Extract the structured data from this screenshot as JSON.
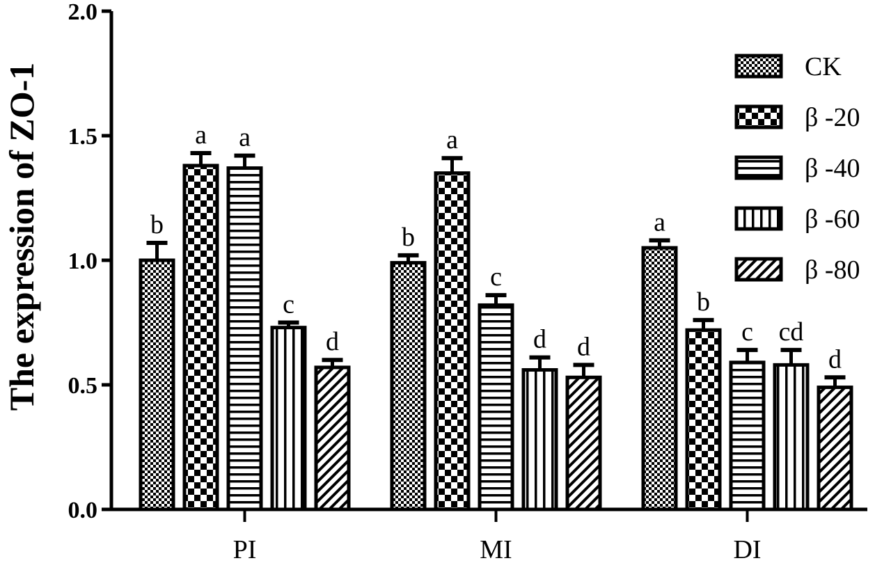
{
  "chart_data": {
    "type": "bar",
    "ylabel": "The expression of ZO-1",
    "xlabel": "",
    "ylim": [
      0,
      2.0
    ],
    "yticks": [
      0.0,
      0.5,
      1.0,
      1.5,
      2.0
    ],
    "ytick_labels": [
      "0.0",
      "0.5",
      "1.0",
      "1.5",
      "2.0"
    ],
    "categories": [
      "PI",
      "MI",
      "DI"
    ],
    "legend_position": "top-right",
    "series": [
      {
        "name": "CK",
        "pattern": "small-checker",
        "values": [
          1.0,
          0.99,
          1.05
        ],
        "errors": [
          0.07,
          0.03,
          0.03
        ],
        "letters": [
          "b",
          "b",
          "a"
        ]
      },
      {
        "name": "β -20",
        "pattern": "large-checker",
        "values": [
          1.38,
          1.35,
          0.72
        ],
        "errors": [
          0.05,
          0.06,
          0.04
        ],
        "letters": [
          "a",
          "a",
          "b"
        ]
      },
      {
        "name": "β -40",
        "pattern": "horizontal",
        "values": [
          1.37,
          0.82,
          0.59
        ],
        "errors": [
          0.05,
          0.04,
          0.05
        ],
        "letters": [
          "a",
          "c",
          "c"
        ]
      },
      {
        "name": "β -60",
        "pattern": "vertical",
        "values": [
          0.73,
          0.56,
          0.58
        ],
        "errors": [
          0.02,
          0.05,
          0.06
        ],
        "letters": [
          "c",
          "d",
          "cd"
        ]
      },
      {
        "name": "β -80",
        "pattern": "diagonal",
        "values": [
          0.57,
          0.53,
          0.49
        ],
        "errors": [
          0.03,
          0.05,
          0.04
        ],
        "letters": [
          "d",
          "d",
          "d"
        ]
      }
    ]
  }
}
